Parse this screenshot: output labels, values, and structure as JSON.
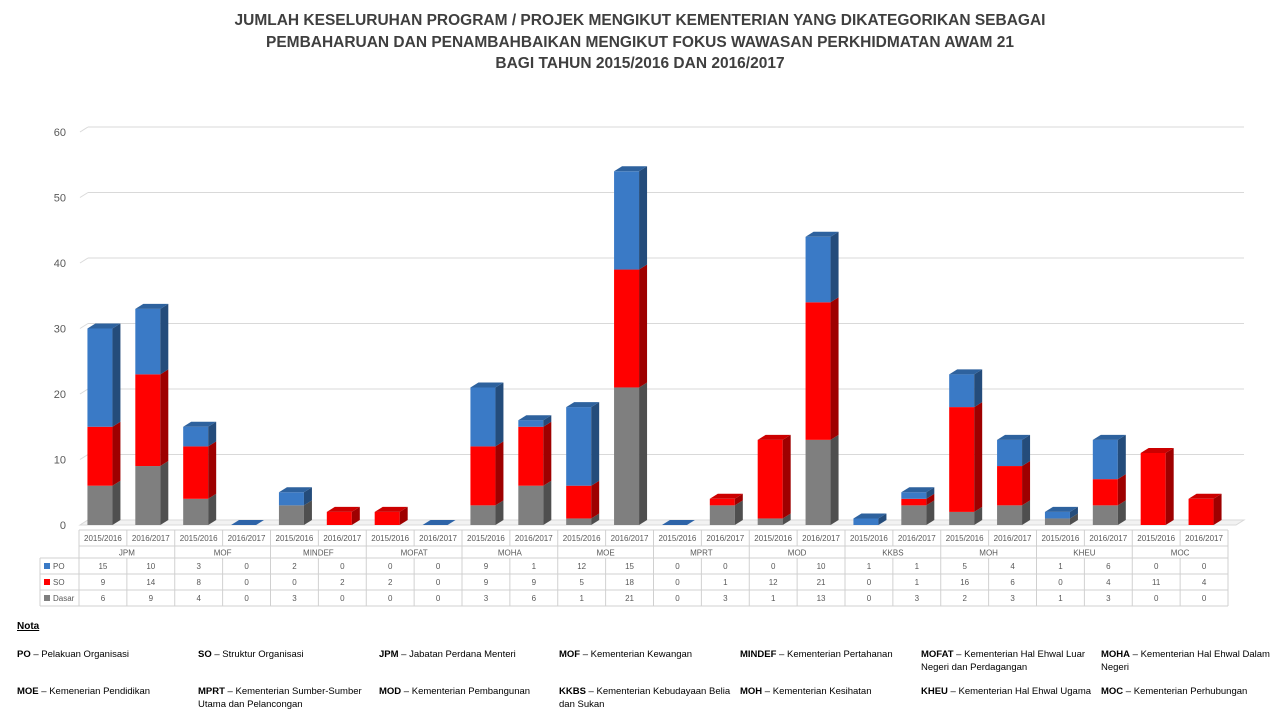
{
  "title_lines": [
    "JUMLAH KESELURUHAN PROGRAM / PROJEK MENGIKUT KEMENTERIAN YANG DIKATEGORIKAN SEBAGAI",
    "PEMBAHARUAN DAN PENAMBAHBAIKAN MENGIKUT FOKUS WAWASAN PERKHIDMATAN AWAM 21",
    "BAGI TAHUN 2015/2016 DAN 2016/2017"
  ],
  "chart_data": {
    "type": "bar",
    "stacked": true,
    "three_d": true,
    "title": "JUMLAH KESELURUHAN PROGRAM / PROJEK MENGIKUT KEMENTERIAN YANG DIKATEGORIKAN SEBAGAI PEMBAHARUAN DAN PENAMBAHBAIKAN MENGIKUT FOKUS WAWASAN PERKHIDMATAN AWAM 21 BAGI TAHUN 2015/2016 DAN 2016/2017",
    "groups": [
      "JPM",
      "MOF",
      "MINDEF",
      "MOFAT",
      "MOHA",
      "MOE",
      "MPRT",
      "MOD",
      "KKBS",
      "MOH",
      "KHEU",
      "MOC"
    ],
    "years": [
      "2015/2016",
      "2016/2017"
    ],
    "yticks": [
      0,
      10,
      20,
      30,
      40,
      50,
      60
    ],
    "ylim": [
      0,
      60
    ],
    "grid": true,
    "legend_in_table": true,
    "series": [
      {
        "name": "PO",
        "color": "#3a7ac6",
        "values": [
          15,
          10,
          3,
          0,
          2,
          0,
          0,
          0,
          9,
          1,
          12,
          15,
          0,
          0,
          0,
          10,
          1,
          1,
          5,
          4,
          1,
          6,
          0,
          0
        ]
      },
      {
        "name": "SO",
        "color": "#ff0000",
        "values": [
          9,
          14,
          8,
          0,
          0,
          2,
          2,
          0,
          9,
          9,
          5,
          18,
          0,
          1,
          12,
          21,
          0,
          1,
          16,
          6,
          0,
          4,
          11,
          4
        ]
      },
      {
        "name": "Dasar",
        "color": "#7f7f7f",
        "values": [
          6,
          9,
          4,
          0,
          3,
          0,
          0,
          0,
          3,
          6,
          1,
          21,
          0,
          3,
          1,
          13,
          0,
          3,
          2,
          3,
          1,
          3,
          0,
          0
        ]
      }
    ]
  },
  "nota": {
    "heading": "Nota",
    "items": [
      {
        "abbr": "PO",
        "desc": "Pelakuan Organisasi"
      },
      {
        "abbr": "SO",
        "desc": "Struktur Organisasi"
      },
      {
        "abbr": "JPM",
        "desc": "Jabatan Perdana Menteri"
      },
      {
        "abbr": "MOF",
        "desc": "Kementerian Kewangan"
      },
      {
        "abbr": "MINDEF",
        "desc": "Kementerian Pertahanan"
      },
      {
        "abbr": "MOFAT",
        "desc": "Kementerian Hal Ehwal Luar Negeri dan Perdagangan"
      },
      {
        "abbr": "MOHA",
        "desc": "Kementerian Hal Ehwal Dalam Negeri"
      },
      {
        "abbr": "MOE",
        "desc": "Kemenerian Pendidikan"
      },
      {
        "abbr": "MPRT",
        "desc": "Kementerian Sumber-Sumber Utama dan Pelancongan"
      },
      {
        "abbr": "MOD",
        "desc": "Kementerian Pembangunan"
      },
      {
        "abbr": "KKBS",
        "desc": " Kementerian Kebudayaan Belia dan Sukan"
      },
      {
        "abbr": "MOH",
        "desc": "Kementerian Kesihatan"
      },
      {
        "abbr": "KHEU",
        "desc": "Kementerian Hal Ehwal Ugama"
      },
      {
        "abbr": "MOC",
        "desc": "Kementerian Perhubungan"
      }
    ]
  }
}
